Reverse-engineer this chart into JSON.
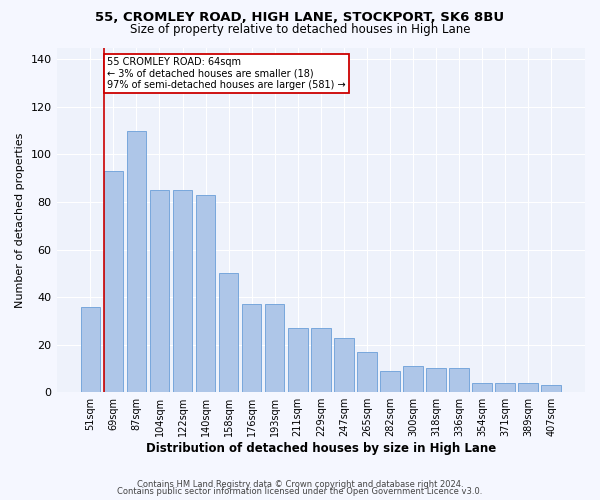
{
  "title": "55, CROMLEY ROAD, HIGH LANE, STOCKPORT, SK6 8BU",
  "subtitle": "Size of property relative to detached houses in High Lane",
  "xlabel": "Distribution of detached houses by size in High Lane",
  "ylabel": "Number of detached properties",
  "categories": [
    "51sqm",
    "69sqm",
    "87sqm",
    "104sqm",
    "122sqm",
    "140sqm",
    "158sqm",
    "176sqm",
    "193sqm",
    "211sqm",
    "229sqm",
    "247sqm",
    "265sqm",
    "282sqm",
    "300sqm",
    "318sqm",
    "336sqm",
    "354sqm",
    "371sqm",
    "389sqm",
    "407sqm"
  ],
  "values": [
    36,
    93,
    110,
    85,
    85,
    83,
    50,
    37,
    37,
    27,
    27,
    23,
    17,
    9,
    11,
    10,
    10,
    4,
    4,
    4,
    3
  ],
  "bar_color": "#aec6e8",
  "bar_edge_color": "#6a9fd8",
  "background_color": "#eef2fb",
  "grid_color": "#ffffff",
  "marker_label": "55 CROMLEY ROAD: 64sqm",
  "marker_line1": "← 3% of detached houses are smaller (18)",
  "marker_line2": "97% of semi-detached houses are larger (581) →",
  "annotation_box_color": "#ffffff",
  "annotation_box_edge": "#cc0000",
  "marker_line_color": "#cc0000",
  "ylim": [
    0,
    145
  ],
  "yticks": [
    0,
    20,
    40,
    60,
    80,
    100,
    120,
    140
  ],
  "footer1": "Contains HM Land Registry data © Crown copyright and database right 2024.",
  "footer2": "Contains public sector information licensed under the Open Government Licence v3.0."
}
